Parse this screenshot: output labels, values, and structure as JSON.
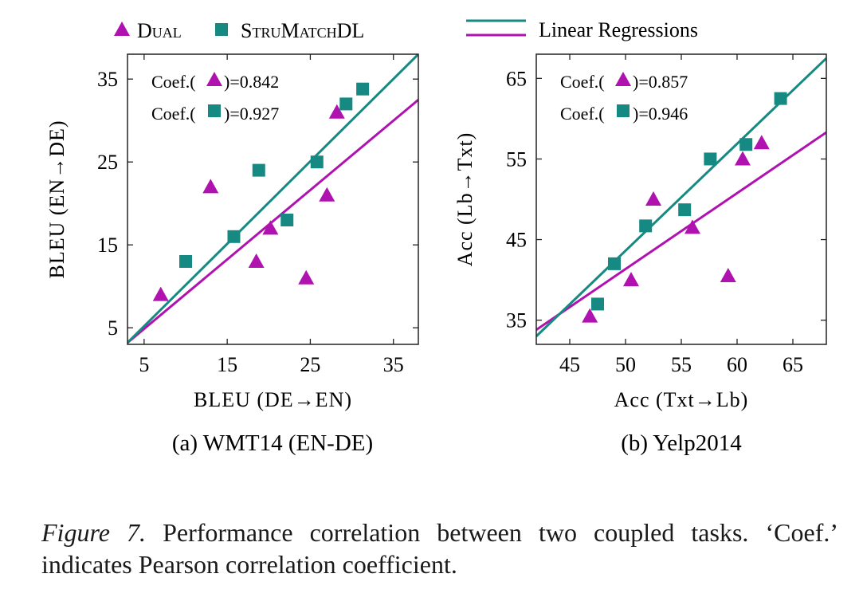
{
  "colors": {
    "dual": "#b012b0",
    "strumatch": "#168a82",
    "axis": "#222222"
  },
  "legend": {
    "dual_label": "Dual",
    "strumatch_label": "StruMatchDL",
    "regression_label": "Linear Regressions"
  },
  "caption": {
    "label": "Figure 7.",
    "text": "Performance correlation between two coupled tasks. ‘Coef.’ indicates Pearson correlation coefficient."
  },
  "chart_data": [
    {
      "type": "scatter",
      "subtitle": "(a) WMT14 (EN-DE)",
      "xlabel": "BLEU (DE→EN)",
      "ylabel": "BLEU (EN→DE)",
      "xlim": [
        3,
        38
      ],
      "ylim": [
        3,
        38
      ],
      "xticks": [
        5,
        15,
        25,
        35
      ],
      "yticks": [
        5,
        15,
        25,
        35
      ],
      "series": [
        {
          "name": "Dual",
          "marker": "triangle",
          "coef_label": "=0.842",
          "points": [
            [
              7,
              9
            ],
            [
              13,
              22
            ],
            [
              18.5,
              13
            ],
            [
              20.2,
              17
            ],
            [
              24.5,
              11
            ],
            [
              27,
              21
            ],
            [
              28.2,
              31
            ]
          ]
        },
        {
          "name": "StruMatchDL",
          "marker": "square",
          "coef_label": "=0.927",
          "points": [
            [
              10,
              13
            ],
            [
              15.8,
              16
            ],
            [
              18.8,
              24
            ],
            [
              22.2,
              18
            ],
            [
              25.8,
              25
            ],
            [
              29.3,
              32
            ],
            [
              31.3,
              33.8
            ]
          ]
        }
      ],
      "regressions": [
        {
          "series": "Dual",
          "x": [
            3,
            38
          ],
          "y": [
            3.2,
            32.5
          ]
        },
        {
          "series": "StruMatchDL",
          "x": [
            3,
            38
          ],
          "y": [
            3.2,
            38
          ]
        }
      ],
      "coef_prefix": "Coef.(",
      "grid": false
    },
    {
      "type": "scatter",
      "subtitle": "(b) Yelp2014",
      "xlabel": "Acc (Txt→Lb)",
      "ylabel": "Acc (Lb→Txt)",
      "xlim": [
        42,
        68
      ],
      "ylim": [
        32,
        68
      ],
      "xticks": [
        45,
        50,
        55,
        60,
        65
      ],
      "yticks": [
        35,
        45,
        55,
        65
      ],
      "series": [
        {
          "name": "Dual",
          "marker": "triangle",
          "coef_label": "=0.857",
          "points": [
            [
              46.8,
              35.5
            ],
            [
              50.5,
              40
            ],
            [
              52.5,
              50
            ],
            [
              56,
              46.5
            ],
            [
              59.2,
              40.5
            ],
            [
              60.5,
              55
            ],
            [
              62.2,
              57
            ]
          ]
        },
        {
          "name": "StruMatchDL",
          "marker": "square",
          "coef_label": "=0.946",
          "points": [
            [
              47.5,
              37
            ],
            [
              49,
              42
            ],
            [
              51.8,
              46.7
            ],
            [
              55.3,
              48.7
            ],
            [
              57.6,
              55
            ],
            [
              60.8,
              56.8
            ],
            [
              63.9,
              62.5
            ]
          ]
        }
      ],
      "regressions": [
        {
          "series": "Dual",
          "x": [
            42,
            68
          ],
          "y": [
            33.8,
            58.3
          ]
        },
        {
          "series": "StruMatchDL",
          "x": [
            42,
            68
          ],
          "y": [
            33,
            67.5
          ]
        }
      ],
      "coef_prefix": "Coef.(",
      "grid": false
    }
  ]
}
